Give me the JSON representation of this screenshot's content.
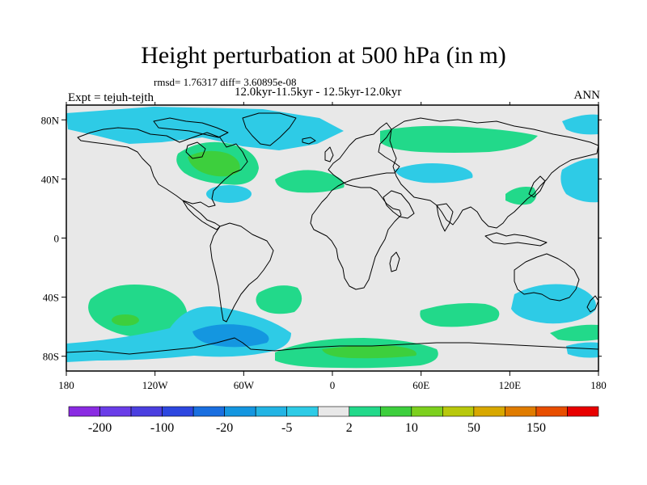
{
  "title": "Height perturbation at 500 hPa (in m)",
  "stats": "rmsd= 1.76317 diff= 3.60895e-08",
  "period": "12.0kyr-11.5kyr - 12.5kyr-12.0kyr",
  "experiment": "Expt = tejuh-tejth",
  "season": "ANN",
  "map": {
    "projection": "cylindrical equidistant",
    "lon_range": [
      -180,
      180
    ],
    "lat_range": [
      -90,
      90
    ],
    "x_ticks": [
      {
        "lon": -180,
        "label": "180"
      },
      {
        "lon": -120,
        "label": "120W"
      },
      {
        "lon": -60,
        "label": "60W"
      },
      {
        "lon": 0,
        "label": "0"
      },
      {
        "lon": 60,
        "label": "60E"
      },
      {
        "lon": 120,
        "label": "120E"
      },
      {
        "lon": 180,
        "label": "180"
      }
    ],
    "y_ticks": [
      {
        "lat": 80,
        "label": "80N"
      },
      {
        "lat": 40,
        "label": "40N"
      },
      {
        "lat": 0,
        "label": "0"
      },
      {
        "lat": -40,
        "label": "40S"
      },
      {
        "lat": -80,
        "label": "80S"
      }
    ],
    "background_color": "#e8e8e8",
    "coastline_color": "#000000"
  },
  "colorbar": {
    "colors": [
      "#8a2be2",
      "#6a3de8",
      "#4b3fe0",
      "#2d47e0",
      "#1a6fe0",
      "#1496e0",
      "#22b4e4",
      "#2ecbe6",
      "#e8e8e8",
      "#22d98a",
      "#3dcf3d",
      "#7dd01e",
      "#b8c80c",
      "#d8a800",
      "#e07c00",
      "#e84e00",
      "#e80000"
    ],
    "labels": [
      {
        "after_index": 0,
        "text": "-200"
      },
      {
        "after_index": 2,
        "text": "-100"
      },
      {
        "after_index": 4,
        "text": "-20"
      },
      {
        "after_index": 6,
        "text": "-5"
      },
      {
        "after_index": 8,
        "text": "2"
      },
      {
        "after_index": 10,
        "text": "10"
      },
      {
        "after_index": 12,
        "text": "50"
      },
      {
        "after_index": 14,
        "text": "150"
      }
    ]
  },
  "anomaly_regions": [
    {
      "label": "Arctic/N Canada",
      "sign": "negative",
      "level": "-5"
    },
    {
      "label": "NE North America",
      "sign": "positive",
      "level": "10"
    },
    {
      "label": "Subtropical W Atlantic",
      "sign": "negative",
      "level": "-5"
    },
    {
      "label": "Mid-latitude N Atlantic",
      "sign": "positive",
      "level": "2"
    },
    {
      "label": "Eurasia 50-60N",
      "sign": "positive",
      "level": "2"
    },
    {
      "label": "Central Asia 40N",
      "sign": "negative",
      "level": "-5"
    },
    {
      "label": "East Asia/Japan",
      "sign": "positive",
      "level": "2"
    },
    {
      "label": "NW Pacific",
      "sign": "negative",
      "level": "-5"
    },
    {
      "label": "S Pacific 40-60S",
      "sign": "positive",
      "level": "10"
    },
    {
      "label": "SE Pacific 60-70S",
      "sign": "negative",
      "level": "-20"
    },
    {
      "label": "S Atlantic 40S",
      "sign": "positive",
      "level": "2"
    },
    {
      "label": "Australia/S Indian Ocean",
      "sign": "negative",
      "level": "-5"
    },
    {
      "label": "Southern Ocean 55S",
      "sign": "positive",
      "level": "2"
    },
    {
      "label": "Antarctica 75-80S",
      "sign": "positive",
      "level": "10"
    }
  ]
}
